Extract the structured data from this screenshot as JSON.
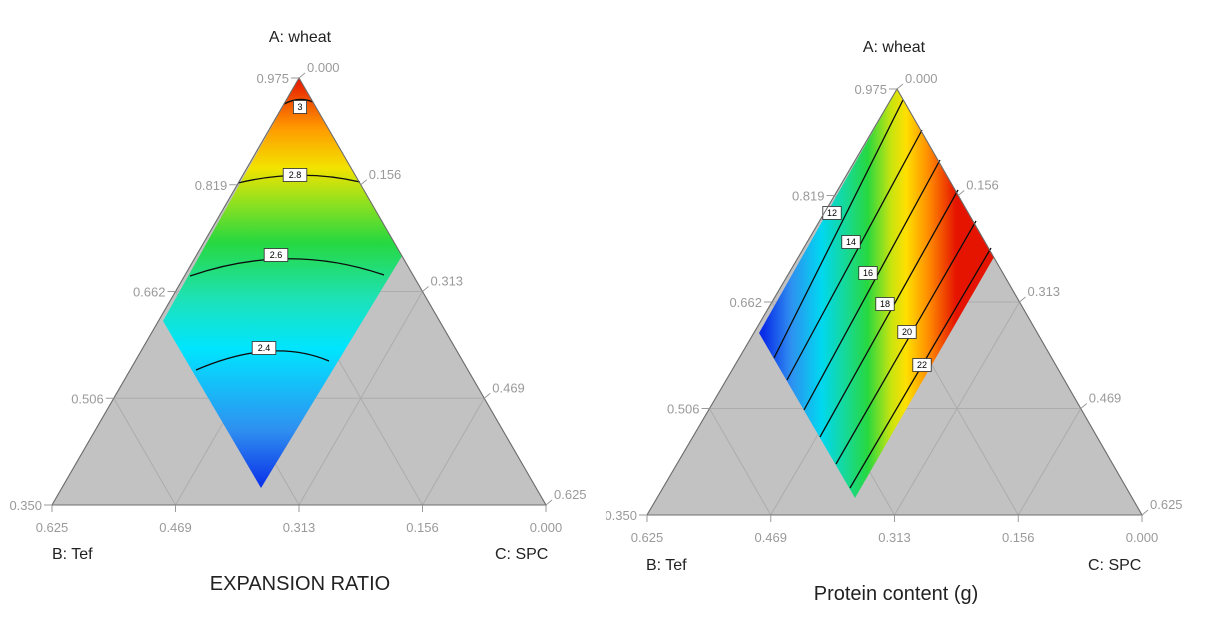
{
  "chart_data": [
    {
      "type": "heatmap",
      "subtype": "ternary-contour",
      "title": "EXPANSION RATIO",
      "vertices": {
        "top": "A: wheat",
        "left": "B: Tef",
        "right": "C: SPC"
      },
      "tick_labels": {
        "left_edge": [
          "0.350",
          "0.506",
          "0.662",
          "0.819",
          "0.975"
        ],
        "right_edge": [
          "0.000",
          "0.156",
          "0.313",
          "0.469",
          "0.625"
        ],
        "bottom_edge": [
          "0.625",
          "0.469",
          "0.313",
          "0.156",
          "0.000"
        ]
      },
      "contour_levels": [
        "3",
        "2.8",
        "2.6",
        "2.4"
      ],
      "value_range": [
        2.2,
        3.1
      ],
      "colormap": [
        "#1030e0",
        "#00e5ff",
        "#22d84a",
        "#ffe400",
        "#ff8a00",
        "#e51b00"
      ]
    },
    {
      "type": "heatmap",
      "subtype": "ternary-contour",
      "title": "Protein content (g)",
      "vertices": {
        "top": "A: wheat",
        "left": "B: Tef",
        "right": "C: SPC"
      },
      "tick_labels": {
        "left_edge": [
          "0.350",
          "0.506",
          "0.662",
          "0.819",
          "0.975"
        ],
        "right_edge": [
          "0.000",
          "0.156",
          "0.313",
          "0.469",
          "0.625"
        ],
        "bottom_edge": [
          "0.625",
          "0.469",
          "0.313",
          "0.156",
          "0.000"
        ]
      },
      "contour_levels": [
        "12",
        "14",
        "16",
        "18",
        "20",
        "22"
      ],
      "value_range": [
        10.5,
        23.5
      ],
      "colormap": [
        "#1030e0",
        "#00e5ff",
        "#22d84a",
        "#ffe400",
        "#ff8a00",
        "#e51b00"
      ]
    }
  ]
}
